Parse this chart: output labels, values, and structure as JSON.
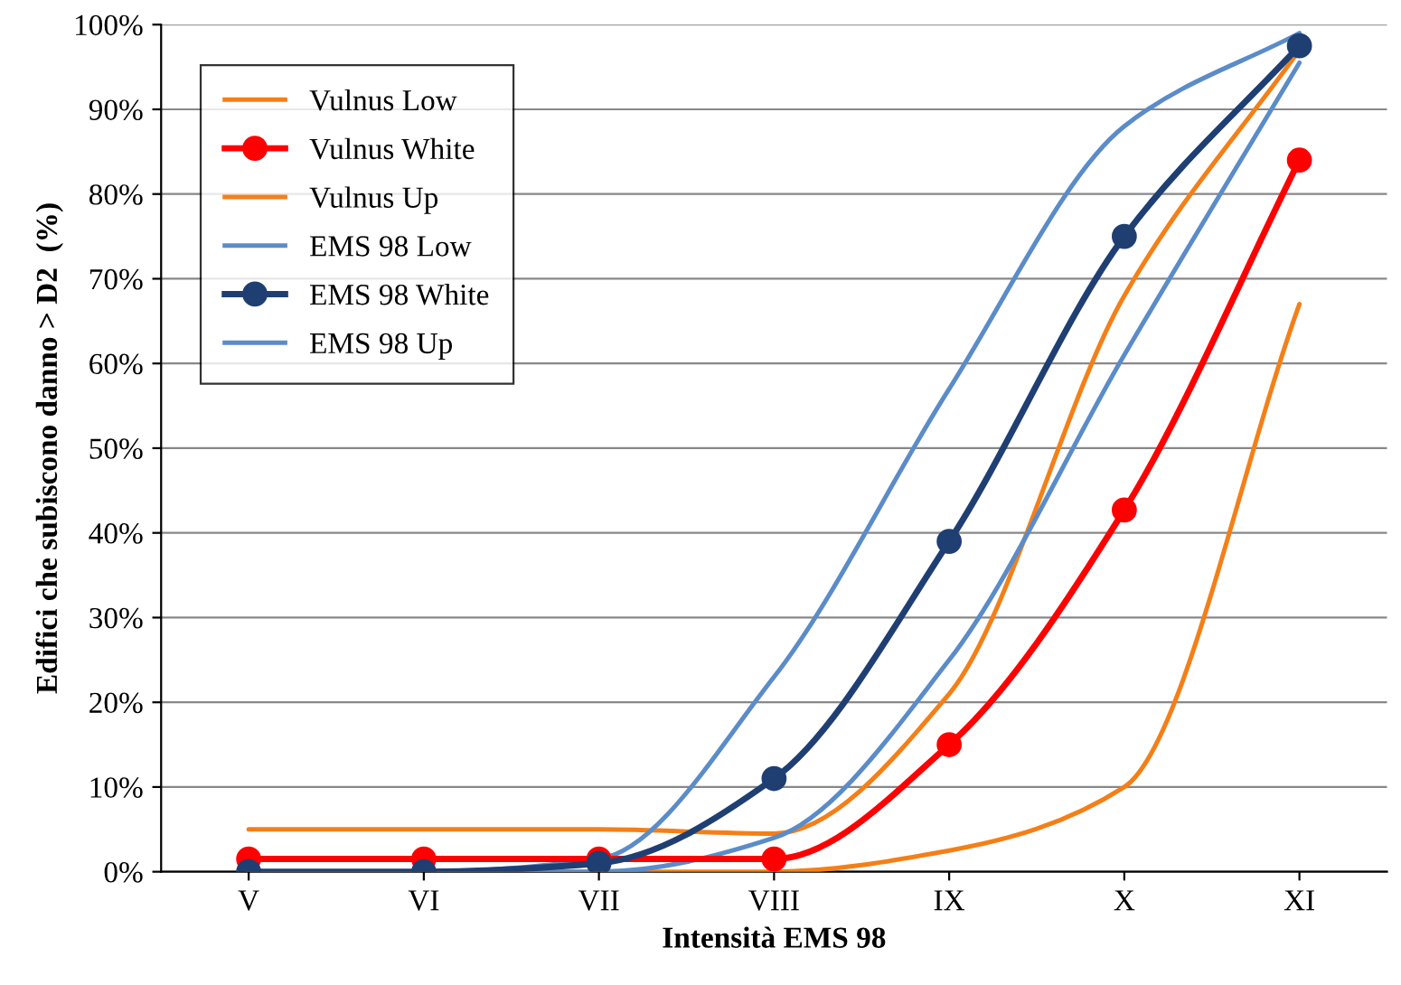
{
  "chart_data": {
    "type": "line",
    "xlabel": "Intensità EMS 98",
    "ylabel": "Edifici che subiscono danno > D2  (%)",
    "categories": [
      "V",
      "VI",
      "VII",
      "VIII",
      "IX",
      "X",
      "XI"
    ],
    "series": [
      {
        "name": "Vulnus Low",
        "color": "#f57f17",
        "values": [
          0,
          0,
          0,
          0,
          2.5,
          10,
          67
        ],
        "marker": "none"
      },
      {
        "name": "Vulnus White",
        "color": "#ff0000",
        "values": [
          1.5,
          1.5,
          1.5,
          1.5,
          15,
          42.7,
          84
        ],
        "marker": "circle"
      },
      {
        "name": "Vulnus Up",
        "color": "#f57f17",
        "values": [
          5,
          5,
          5,
          4.5,
          21,
          68,
          97
        ],
        "marker": "none"
      },
      {
        "name": "EMS 98 Low",
        "color": "#5b8cc8",
        "values": [
          0,
          0,
          0,
          4,
          25,
          61,
          95.5
        ],
        "marker": "none"
      },
      {
        "name": "EMS 98 White",
        "color": "#1f3f73",
        "values": [
          0,
          0,
          1,
          11,
          39,
          75,
          97.5
        ],
        "marker": "circle"
      },
      {
        "name": "EMS 98 Up",
        "color": "#5b8cc8",
        "values": [
          0,
          0,
          1.5,
          23,
          57,
          88,
          99
        ],
        "marker": "none"
      }
    ],
    "ylim": [
      0,
      100
    ],
    "yticks": [
      {
        "value": 0,
        "label": "0%"
      },
      {
        "value": 10,
        "label": "10%"
      },
      {
        "value": 20,
        "label": "20%"
      },
      {
        "value": 30,
        "label": "30%"
      },
      {
        "value": 40,
        "label": "40%"
      },
      {
        "value": 50,
        "label": "50%"
      },
      {
        "value": 60,
        "label": "60%"
      },
      {
        "value": 70,
        "label": "70%"
      },
      {
        "value": 80,
        "label": "80%"
      },
      {
        "value": 90,
        "label": "90%"
      },
      {
        "value": 100,
        "label": "100%"
      }
    ],
    "grid": "y",
    "legend": "top left",
    "line_style": "solid"
  }
}
